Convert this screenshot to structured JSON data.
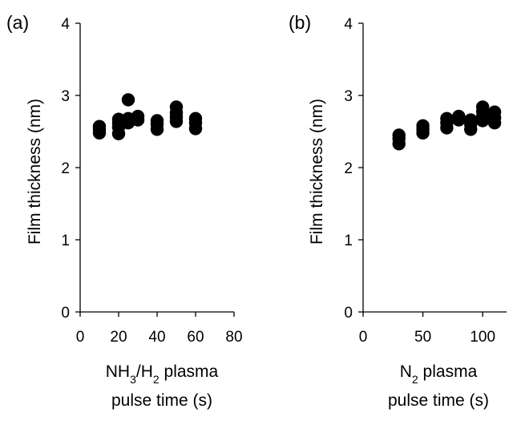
{
  "chart_data": [
    {
      "type": "scatter",
      "panel_label": "(a)",
      "xlabel": [
        "NH3/H2 plasma",
        "pulse time (s)"
      ],
      "xlabel_parts": {
        "a": "NH",
        "a_sub": "3",
        "b": "/H",
        "b_sub": "2",
        "c": " plasma",
        "line2": "pulse time (s)"
      },
      "ylabel": "Film thickness (nm)",
      "xlim": [
        0,
        80
      ],
      "ylim": [
        0,
        4
      ],
      "xticks": [
        0,
        20,
        40,
        60,
        80
      ],
      "yticks": [
        0,
        1,
        2,
        3,
        4
      ],
      "color": "#000000",
      "x": [
        10,
        10,
        10,
        20,
        20,
        20,
        20,
        25,
        25,
        25,
        30,
        30,
        40,
        40,
        40,
        50,
        50,
        50,
        50,
        60,
        60,
        60
      ],
      "y": [
        2.48,
        2.53,
        2.57,
        2.47,
        2.56,
        2.62,
        2.67,
        2.62,
        2.68,
        2.94,
        2.66,
        2.71,
        2.53,
        2.6,
        2.65,
        2.64,
        2.7,
        2.76,
        2.84,
        2.54,
        2.62,
        2.68
      ]
    },
    {
      "type": "scatter",
      "panel_label": "(b)",
      "xlabel": [
        "N2 plasma",
        "pulse time (s)"
      ],
      "xlabel_parts": {
        "a": "N",
        "a_sub": "2",
        "b": "",
        "b_sub": "",
        "c": " plasma",
        "line2": "pulse time (s)"
      },
      "ylabel": "Film thickness (nm)",
      "xlim": [
        0,
        120
      ],
      "ylim": [
        0,
        4
      ],
      "xticks": [
        0,
        50,
        100
      ],
      "yticks": [
        0,
        1,
        2,
        3,
        4
      ],
      "color": "#000000",
      "x": [
        30,
        30,
        30,
        50,
        50,
        50,
        70,
        70,
        70,
        80,
        80,
        90,
        90,
        90,
        100,
        100,
        100,
        100,
        110,
        110,
        110
      ],
      "y": [
        2.33,
        2.4,
        2.45,
        2.48,
        2.53,
        2.58,
        2.55,
        2.62,
        2.68,
        2.66,
        2.71,
        2.53,
        2.6,
        2.66,
        2.65,
        2.71,
        2.78,
        2.84,
        2.62,
        2.69,
        2.77
      ]
    }
  ]
}
